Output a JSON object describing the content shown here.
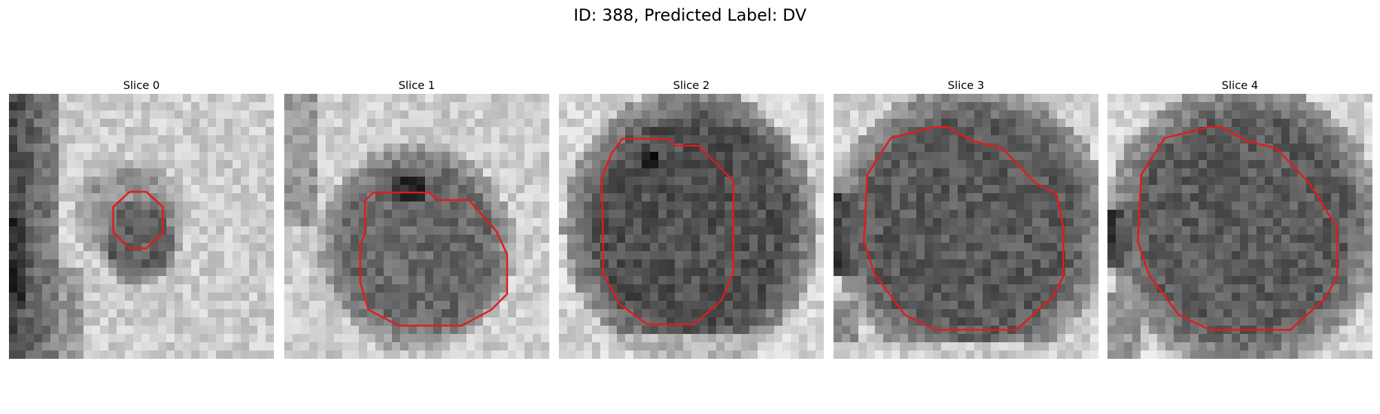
{
  "figure": {
    "title": "ID: 388, Predicted Label: DV"
  },
  "panels": [
    {
      "title": "Slice 0"
    },
    {
      "title": "Slice 1"
    },
    {
      "title": "Slice 2"
    },
    {
      "title": "Slice 3"
    },
    {
      "title": "Slice 4"
    }
  ],
  "colors": {
    "contour": "#e31a1c",
    "background": "#ffffff"
  }
}
